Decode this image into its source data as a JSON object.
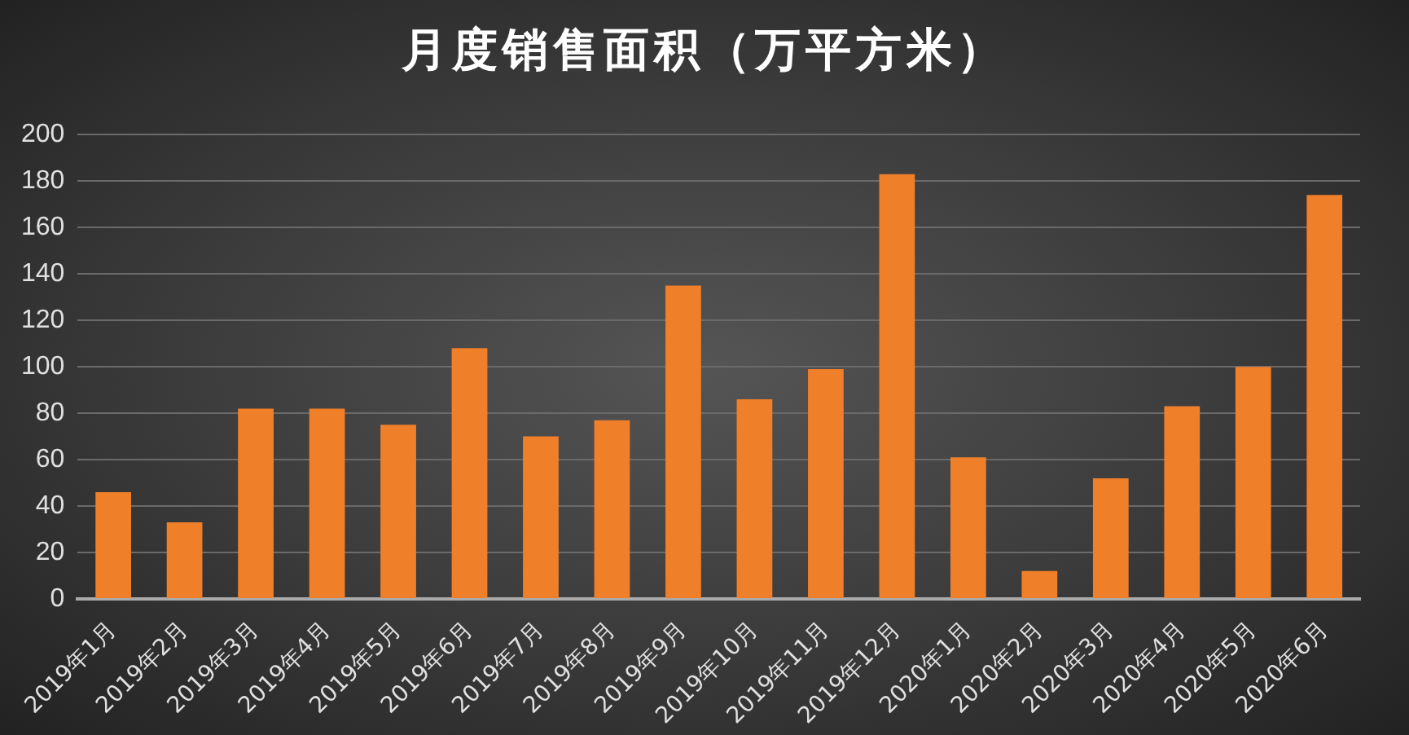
{
  "chart_data": {
    "type": "bar",
    "title": "月度销售面积（万平方米）",
    "categories": [
      "2019年1月",
      "2019年2月",
      "2019年3月",
      "2019年4月",
      "2019年5月",
      "2019年6月",
      "2019年7月",
      "2019年8月",
      "2019年9月",
      "2019年10月",
      "2019年11月",
      "2019年12月",
      "2020年1月",
      "2020年2月",
      "2020年3月",
      "2020年4月",
      "2020年5月",
      "2020年6月"
    ],
    "values": [
      46,
      33,
      82,
      82,
      75,
      108,
      70,
      77,
      135,
      86,
      99,
      183,
      61,
      12,
      52,
      83,
      100,
      174
    ],
    "color": "#f07f2a",
    "ylim": [
      0,
      200
    ],
    "yticks": [
      0,
      20,
      40,
      60,
      80,
      100,
      120,
      140,
      160,
      180,
      200
    ],
    "grid": "y",
    "legend": false
  }
}
